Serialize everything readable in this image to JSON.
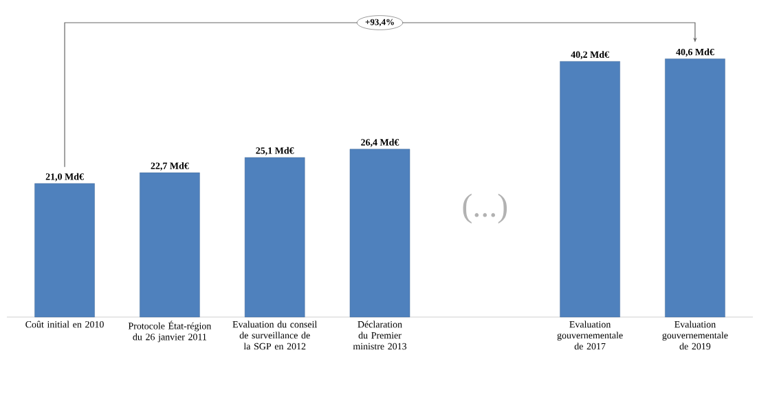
{
  "chart_data": {
    "type": "bar",
    "categories": [
      "Coût initial en 2010",
      "Protocole État-région du 26 janvier 2011",
      "Evaluation du conseil de surveillance de la SGP en 2012",
      "Déclaration du Premier ministre 2013",
      null,
      "Evaluation gouvernementale de 2017",
      "Evaluation gouvernementale de 2019"
    ],
    "values": [
      21.0,
      22.7,
      25.1,
      26.4,
      null,
      40.2,
      40.6
    ],
    "value_labels": [
      "21,0 Md€",
      "22,7 Md€",
      "25,1 Md€",
      "26,4 Md€",
      null,
      "40,2 Md€",
      "40,6 Md€"
    ],
    "color": "#4f81bd",
    "annotations": [
      "+93,4%",
      "(...)"
    ]
  }
}
